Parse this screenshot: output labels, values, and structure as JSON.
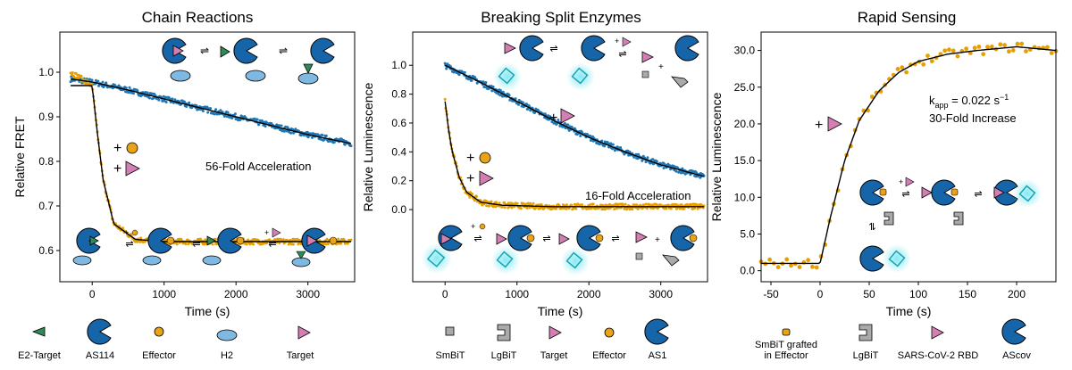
{
  "colors": {
    "blue_series": "#1f77b4",
    "orange_series": "#e69f00",
    "fit_line": "#000000",
    "protein_blue": "#1565a8",
    "target_pink": "#d47fb3",
    "effector_orange": "#e8a317",
    "bit_gray": "#aaaaaa",
    "glow_cyan": "#7fe8f0",
    "h2_lightblue": "#7fb8e0"
  },
  "chart_data": [
    {
      "type": "scatter",
      "title": "Chain Reactions",
      "xlabel": "Time (s)",
      "ylabel": "Relative FRET",
      "xlim": [
        -450,
        3650
      ],
      "ylim": [
        0.53,
        1.09
      ],
      "xticks": [
        "0",
        "1000",
        "2000",
        "3000"
      ],
      "yticks": [
        "0.6",
        "0.7",
        "0.8",
        "0.9",
        "1.0"
      ],
      "series": [
        {
          "color_key": "blue_series",
          "x": [
            -300,
            0,
            500,
            1000,
            1500,
            2000,
            2500,
            3000,
            3600
          ],
          "y": [
            0.985,
            0.978,
            0.96,
            0.94,
            0.92,
            0.9,
            0.88,
            0.86,
            0.84
          ]
        },
        {
          "color_key": "orange_series",
          "x": [
            -300,
            0,
            60,
            150,
            300,
            600,
            1000,
            2000,
            3600
          ],
          "y": [
            1.0,
            0.97,
            0.88,
            0.76,
            0.66,
            0.625,
            0.62,
            0.62,
            0.62
          ]
        }
      ],
      "annotations": {
        "plus_effector": "+",
        "plus_target": "+",
        "acceleration": "56-Fold Acceleration"
      },
      "legend": [
        "E2-Target",
        "AS114",
        "Effector",
        "H2",
        "Target"
      ]
    },
    {
      "type": "scatter",
      "title": "Breaking Split Enzymes",
      "xlabel": "Time (s)",
      "ylabel": "Relative Luminescence",
      "xlim": [
        -450,
        3650
      ],
      "ylim": [
        -0.5,
        1.23
      ],
      "xticks": [
        "0",
        "1000",
        "2000",
        "3000"
      ],
      "yticks": [
        "0.0",
        "0.2",
        "0.4",
        "0.6",
        "0.8",
        "1.0"
      ],
      "series": [
        {
          "color_key": "blue_series",
          "x": [
            0,
            500,
            1000,
            1500,
            2000,
            2500,
            3000,
            3600
          ],
          "y": [
            1.0,
            0.88,
            0.75,
            0.62,
            0.5,
            0.4,
            0.31,
            0.23
          ]
        },
        {
          "color_key": "orange_series",
          "x": [
            0,
            50,
            100,
            200,
            300,
            500,
            800,
            1500,
            3600
          ],
          "y": [
            0.75,
            0.55,
            0.4,
            0.22,
            0.12,
            0.05,
            0.03,
            0.02,
            0.02
          ]
        }
      ],
      "annotations": {
        "plus_target": "+",
        "plus_effector": "+",
        "plus_target2": "+",
        "acceleration": "16-Fold Acceleration"
      },
      "legend": [
        "SmBiT",
        "LgBiT",
        "Target",
        "Effector",
        "AS1"
      ]
    },
    {
      "type": "scatter",
      "title": "Rapid Sensing",
      "xlabel": "Time (s)",
      "ylabel": "Relative Luminescence",
      "xlim": [
        -60,
        240
      ],
      "ylim": [
        -1.5,
        32.5
      ],
      "xticks": [
        "-50",
        "0",
        "50",
        "100",
        "150",
        "200"
      ],
      "yticks": [
        "0.0",
        "5.0",
        "10.0",
        "15.0",
        "20.0",
        "25.0",
        "30.0"
      ],
      "series": [
        {
          "color_key": "orange_series",
          "x": [
            -60,
            -30,
            0,
            10,
            25,
            40,
            60,
            80,
            100,
            130,
            160,
            200,
            240
          ],
          "y": [
            1.0,
            1.0,
            1.0,
            7.0,
            15.0,
            20.5,
            24.5,
            27.0,
            28.5,
            29.5,
            30.0,
            30.5,
            30.0
          ]
        }
      ],
      "annotations": {
        "kapp_prefix": "k",
        "kapp_sub": "app",
        "kapp_value": " = 0.022 s",
        "kapp_sup": "−1",
        "increase": "30-Fold Increase",
        "plus_target": "+"
      },
      "legend": [
        "SmBiT grafted",
        "in Effector",
        "LgBiT",
        "SARS-CoV-2 RBD",
        "AScov"
      ]
    }
  ]
}
